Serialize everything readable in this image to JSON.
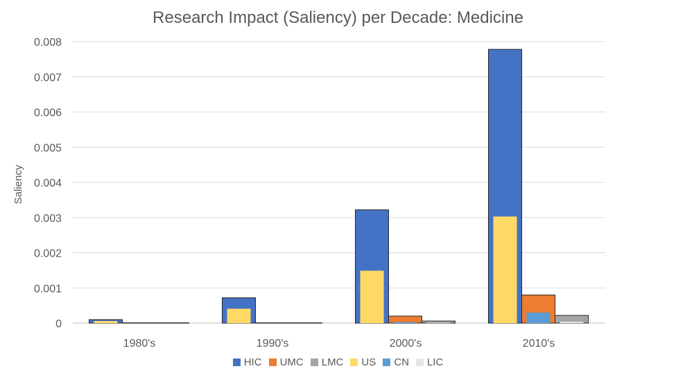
{
  "colors": {
    "HIC": "#4472C4",
    "UMC": "#ED7D31",
    "LMC": "#A5A5A5",
    "US": "#FFD966",
    "CN": "#5B9BD5",
    "LIC": "#E7E6E6"
  },
  "chart_data": {
    "type": "bar",
    "title": "Research Impact (Saliency) per Decade: Medicine",
    "xlabel": "",
    "ylabel": "Saliency",
    "ylim": [
      0,
      0.008
    ],
    "yticks": [
      "0",
      "0.001",
      "0.002",
      "0.003",
      "0.004",
      "0.005",
      "0.006",
      "0.007",
      "0.008"
    ],
    "grid": true,
    "legend_position": "bottom",
    "categories": [
      "1980's",
      "1990's",
      "2000's",
      "2010's"
    ],
    "series": [
      {
        "name": "HIC",
        "values": [
          0.0001,
          0.00072,
          0.00322,
          0.00778
        ]
      },
      {
        "name": "UMC",
        "values": [
          1e-05,
          1e-05,
          0.0002,
          0.0008
        ]
      },
      {
        "name": "LMC",
        "values": [
          1e-05,
          1e-05,
          6e-05,
          0.00022
        ]
      },
      {
        "name": "US",
        "values": [
          6e-05,
          0.00041,
          0.00149,
          0.00303
        ]
      },
      {
        "name": "CN",
        "values": [
          0.0,
          0.0,
          3e-05,
          0.0003
        ]
      },
      {
        "name": "LIC",
        "values": [
          0.0,
          0.0,
          1e-05,
          4e-05
        ]
      }
    ]
  }
}
